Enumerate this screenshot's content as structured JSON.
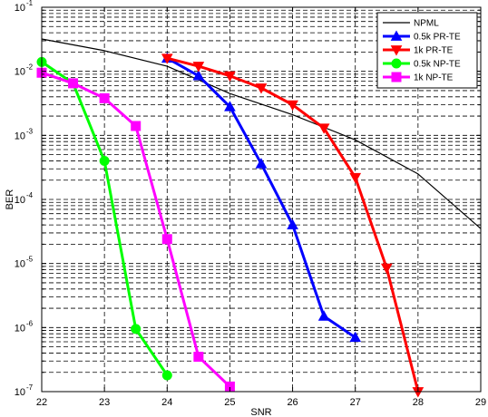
{
  "chart_data": {
    "type": "line",
    "title": "",
    "xlabel": "SNR",
    "ylabel": "BER",
    "xlim": [
      22,
      29
    ],
    "ylim": [
      1e-07,
      0.1
    ],
    "yscale": "log",
    "xticks": [
      "22",
      "23",
      "24",
      "25",
      "26",
      "27",
      "28",
      "29"
    ],
    "yticks": [
      {
        "base": "10",
        "exp": "-1"
      },
      {
        "base": "10",
        "exp": "-2"
      },
      {
        "base": "10",
        "exp": "-3"
      },
      {
        "base": "10",
        "exp": "-4"
      },
      {
        "base": "10",
        "exp": "-5"
      },
      {
        "base": "10",
        "exp": "-6"
      },
      {
        "base": "10",
        "exp": "-7"
      }
    ],
    "grid": true,
    "legend_position": "top-right",
    "series": [
      {
        "name": "NPML",
        "color": "#000000",
        "marker": "none",
        "x": [
          22,
          23,
          24,
          25,
          26,
          27,
          28,
          29
        ],
        "y": [
          0.032,
          0.021,
          0.012,
          0.0045,
          0.0021,
          0.00085,
          0.00025,
          3.5e-05
        ]
      },
      {
        "name": "0.5k PR-TE",
        "color": "#0000ff",
        "marker": "triangle-up",
        "x": [
          24,
          24.5,
          25,
          25.5,
          26,
          26.5,
          27
        ],
        "y": [
          0.016,
          0.0085,
          0.0028,
          0.00036,
          4e-05,
          1.5e-06,
          7e-07
        ]
      },
      {
        "name": "1k PR-TE",
        "color": "#ff0000",
        "marker": "triangle-down",
        "x": [
          24,
          24.5,
          25,
          25.5,
          26,
          26.5,
          27,
          27.5,
          28
        ],
        "y": [
          0.016,
          0.012,
          0.0085,
          0.0055,
          0.003,
          0.0013,
          0.00022,
          8.5e-06,
          1e-07
        ]
      },
      {
        "name": "0.5k NP-TE",
        "color": "#00ff00",
        "marker": "circle",
        "x": [
          22,
          22.5,
          23,
          23.5,
          24
        ],
        "y": [
          0.014,
          0.0065,
          0.0004,
          9.5e-07,
          1.8e-07
        ]
      },
      {
        "name": "1k NP-TE",
        "color": "#ff00ff",
        "marker": "square",
        "x": [
          22,
          22.5,
          23,
          23.5,
          24,
          24.5,
          25
        ],
        "y": [
          0.0095,
          0.0065,
          0.0038,
          0.0014,
          2.4e-05,
          3.5e-07,
          1.2e-07
        ]
      }
    ]
  }
}
